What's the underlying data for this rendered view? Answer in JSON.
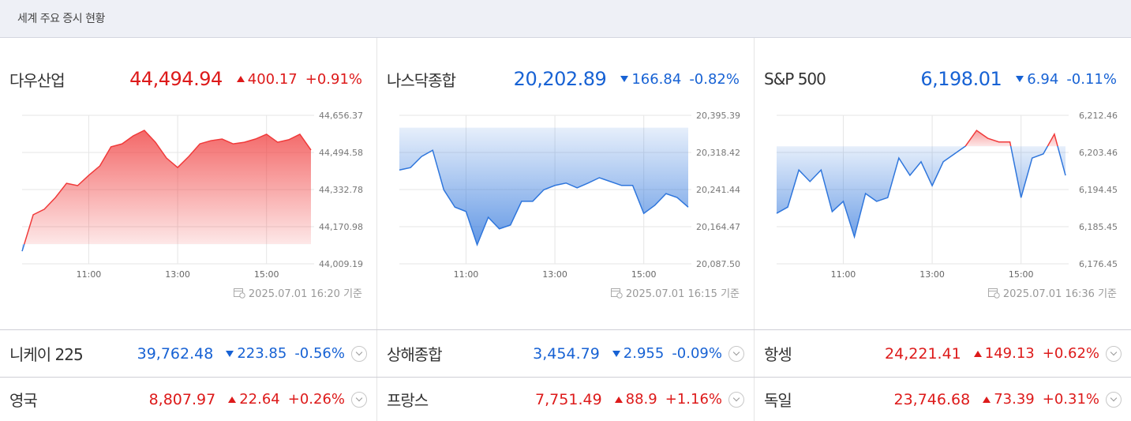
{
  "header": {
    "title": "세계 주요 증시 현황"
  },
  "panels": [
    {
      "name": "다우산업",
      "price": "44,494.94",
      "change": "400.17",
      "change_pct": "+0.91%",
      "direction": "up",
      "timestamp": "2025.07.01 16:20 기준",
      "chart_data": {
        "type": "line",
        "x": [
          9.5,
          9.75,
          10,
          10.25,
          10.5,
          10.75,
          11,
          11.25,
          11.5,
          11.75,
          12,
          12.25,
          12.5,
          12.75,
          13,
          13.25,
          13.5,
          13.75,
          14,
          14.25,
          14.5,
          14.75,
          15,
          15.25,
          15.5,
          15.75,
          16
        ],
        "values": [
          44064,
          44223,
          44247,
          44298,
          44360,
          44350,
          44395,
          44436,
          44519,
          44532,
          44567,
          44591,
          44539,
          44470,
          44429,
          44477,
          44532,
          44546,
          44553,
          44532,
          44539,
          44553,
          44574,
          44539,
          44550,
          44574,
          44505
        ],
        "xlim": [
          9.5,
          16
        ],
        "xticks": [
          {
            "value": 11,
            "label": "11:00"
          },
          {
            "value": 13,
            "label": "13:00"
          },
          {
            "value": 15,
            "label": "15:00"
          }
        ],
        "ylim": [
          44009.19,
          44656.37
        ],
        "yticks": [
          {
            "value": 44009.19,
            "label": "44,009.19"
          },
          {
            "value": 44170.98,
            "label": "44,170.98"
          },
          {
            "value": 44332.78,
            "label": "44,332.78"
          },
          {
            "value": 44494.58,
            "label": "44,494.58"
          },
          {
            "value": 44656.37,
            "label": "44,656.37"
          }
        ]
      }
    },
    {
      "name": "나스닥종합",
      "price": "20,202.89",
      "change": "166.84",
      "change_pct": "-0.82%",
      "direction": "down",
      "timestamp": "2025.07.01 16:15 기준",
      "chart_data": {
        "type": "line",
        "x": [
          9.5,
          9.75,
          10,
          10.25,
          10.5,
          10.75,
          11,
          11.25,
          11.5,
          11.75,
          12,
          12.25,
          12.5,
          12.75,
          13,
          13.25,
          13.5,
          13.75,
          14,
          14.25,
          14.5,
          14.75,
          15,
          15.25,
          15.5,
          15.75,
          16
        ],
        "values": [
          20282,
          20287,
          20310,
          20323,
          20241,
          20205,
          20196,
          20127,
          20184,
          20160,
          20168,
          20217,
          20217,
          20241,
          20250,
          20255,
          20245,
          20255,
          20266,
          20258,
          20250,
          20250,
          20192,
          20209,
          20233,
          20225,
          20205
        ],
        "xlim": [
          9.5,
          16
        ],
        "xticks": [
          {
            "value": 11,
            "label": "11:00"
          },
          {
            "value": 13,
            "label": "13:00"
          },
          {
            "value": 15,
            "label": "15:00"
          }
        ],
        "ylim": [
          20087.5,
          20395.39
        ],
        "yticks": [
          {
            "value": 20087.5,
            "label": "20,087.50"
          },
          {
            "value": 20164.47,
            "label": "20,164.47"
          },
          {
            "value": 20241.44,
            "label": "20,241.44"
          },
          {
            "value": 20318.42,
            "label": "20,318.42"
          },
          {
            "value": 20395.39,
            "label": "20,395.39"
          }
        ]
      }
    },
    {
      "name": "S&P 500",
      "price": "6,198.01",
      "change": "6.94",
      "change_pct": "-0.11%",
      "direction": "down",
      "timestamp": "2025.07.01 16:36 기준",
      "chart_data": {
        "type": "line",
        "x": [
          9.5,
          9.75,
          10,
          10.25,
          10.5,
          10.75,
          11,
          11.25,
          11.5,
          11.75,
          12,
          12.25,
          12.5,
          12.75,
          13,
          13.25,
          13.5,
          13.75,
          14,
          14.25,
          14.5,
          14.75,
          15,
          15.25,
          15.5,
          15.75,
          16
        ],
        "values": [
          6188.7,
          6190.2,
          6199.2,
          6196.4,
          6199.2,
          6189.1,
          6191.6,
          6183,
          6193.5,
          6191.6,
          6192.5,
          6202.1,
          6197.9,
          6201.2,
          6195.4,
          6201.2,
          6203.1,
          6205,
          6208.8,
          6206.9,
          6206,
          6206,
          6192.5,
          6202.1,
          6203.1,
          6207.9,
          6197.9
        ],
        "xlim": [
          9.5,
          16
        ],
        "xticks": [
          {
            "value": 11,
            "label": "11:00"
          },
          {
            "value": 13,
            "label": "13:00"
          },
          {
            "value": 15,
            "label": "15:00"
          }
        ],
        "ylim": [
          6176.45,
          6212.46
        ],
        "yticks": [
          {
            "value": 6176.45,
            "label": "6,176.45"
          },
          {
            "value": 6185.45,
            "label": "6,185.45"
          },
          {
            "value": 6194.45,
            "label": "6,194.45"
          },
          {
            "value": 6203.46,
            "label": "6,203.46"
          },
          {
            "value": 6212.46,
            "label": "6,212.46"
          }
        ]
      }
    }
  ],
  "rows": [
    [
      {
        "name": "니케이 225",
        "price": "39,762.48",
        "change": "223.85",
        "change_pct": "-0.56%",
        "direction": "down"
      },
      {
        "name": "상해종합",
        "price": "3,454.79",
        "change": "2.955",
        "change_pct": "-0.09%",
        "direction": "down"
      },
      {
        "name": "항셍",
        "price": "24,221.41",
        "change": "149.13",
        "change_pct": "+0.62%",
        "direction": "up"
      }
    ],
    [
      {
        "name": "영국",
        "price": "8,807.97",
        "change": "22.64",
        "change_pct": "+0.26%",
        "direction": "up"
      },
      {
        "name": "프랑스",
        "price": "7,751.49",
        "change": "88.9",
        "change_pct": "+1.16%",
        "direction": "up"
      },
      {
        "name": "독일",
        "price": "23,746.68",
        "change": "73.39",
        "change_pct": "+0.31%",
        "direction": "up"
      }
    ]
  ]
}
